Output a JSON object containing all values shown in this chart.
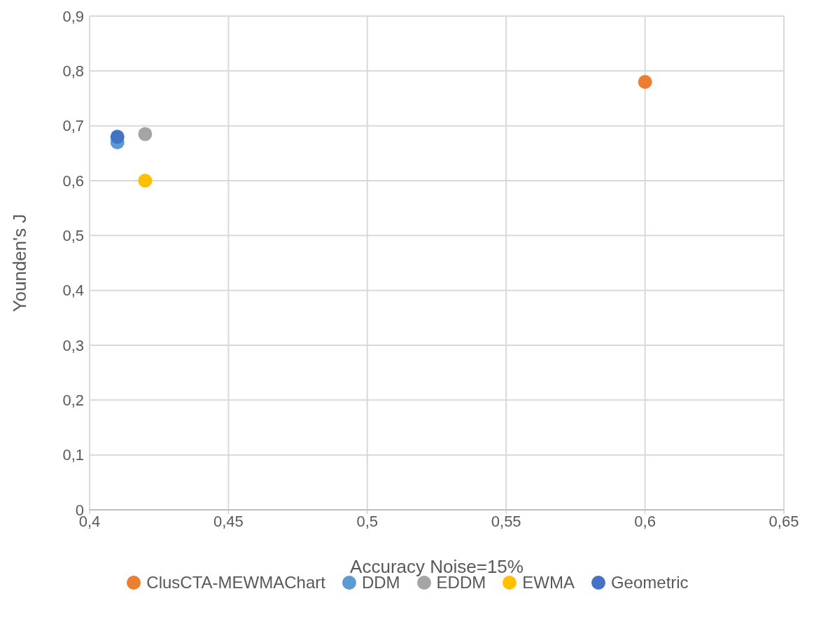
{
  "chart_data": {
    "type": "scatter",
    "xlabel": "Accuracy Noise=15%",
    "ylabel": "Younden's J",
    "xlim": [
      0.4,
      0.65
    ],
    "xticks": [
      {
        "value": 0.4,
        "label": "0,4"
      },
      {
        "value": 0.45,
        "label": "0,45"
      },
      {
        "value": 0.5,
        "label": "0,5"
      },
      {
        "value": 0.55,
        "label": "0,55"
      },
      {
        "value": 0.6,
        "label": "0,6"
      },
      {
        "value": 0.65,
        "label": "0,65"
      }
    ],
    "ylim": [
      0,
      0.9
    ],
    "yticks": [
      0,
      {
        "value": 0.1,
        "label": "0,1"
      },
      {
        "value": 0.2,
        "label": "0,2"
      },
      {
        "value": 0.3,
        "label": "0,3"
      },
      {
        "value": 0.4,
        "label": "0,4"
      },
      {
        "value": 0.5,
        "label": "0,5"
      },
      {
        "value": 0.6,
        "label": "0,6"
      },
      {
        "value": 0.7,
        "label": "0,7"
      },
      {
        "value": 0.8,
        "label": "0,8"
      },
      {
        "value": 0.9,
        "label": "0,9"
      }
    ],
    "grid": true,
    "legend": "bottom",
    "marker": "circle",
    "series": [
      {
        "name": "ClusCTA-MEWMAChart",
        "color": "#ed7d31",
        "x": [
          0.6
        ],
        "values": [
          0.78
        ]
      },
      {
        "name": "DDM",
        "color": "#5b9bd5",
        "x": [
          0.41
        ],
        "values": [
          0.67
        ]
      },
      {
        "name": "EDDM",
        "color": "#a5a5a5",
        "x": [
          0.42
        ],
        "values": [
          0.685
        ]
      },
      {
        "name": "EWMA",
        "color": "#ffc000",
        "x": [
          0.42
        ],
        "values": [
          0.6
        ]
      },
      {
        "name": "Geometric",
        "color": "#4472c4",
        "x": [
          0.41
        ],
        "values": [
          0.68
        ]
      }
    ]
  }
}
